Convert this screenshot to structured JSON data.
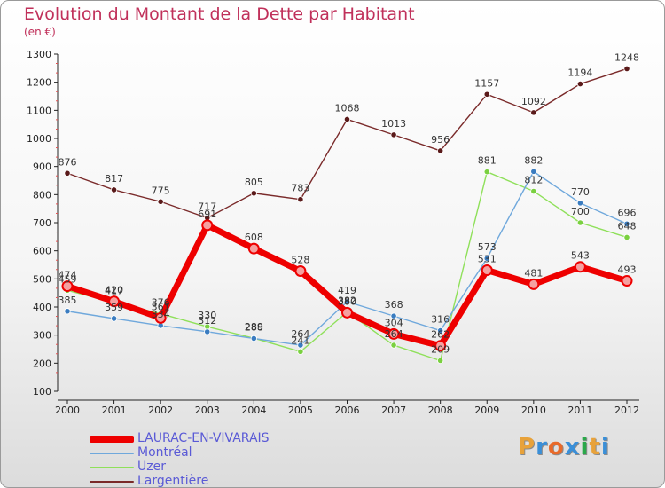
{
  "header": {
    "title": "Evolution du Montant de la Dette par Habitant",
    "subtitle": "(en €)"
  },
  "logo": {
    "text": "Proxiti",
    "colors": [
      "#e8a23a",
      "#3a8fd8",
      "#e86a2a",
      "#3a8fd8",
      "#2aa84a",
      "#e8a23a",
      "#3a8fd8"
    ]
  },
  "chart_data": {
    "type": "line",
    "title": "Evolution du Montant de la Dette par Habitant",
    "subtitle": "(en €)",
    "xlabel": "",
    "ylabel": "",
    "categories": [
      "2000",
      "2001",
      "2002",
      "2003",
      "2004",
      "2005",
      "2006",
      "2007",
      "2008",
      "2009",
      "2010",
      "2011",
      "2012"
    ],
    "ylim": [
      100,
      1300
    ],
    "yticks": [
      100,
      200,
      300,
      400,
      500,
      600,
      700,
      800,
      900,
      1000,
      1100,
      1200,
      1300
    ],
    "grid": false,
    "legend_position": "bottom-left",
    "series": [
      {
        "name": "Largentière",
        "color": "#7a2a2a",
        "marker": "#5a1a1a",
        "width": 1.4,
        "values": [
          876,
          817,
          775,
          717,
          805,
          783,
          1068,
          1013,
          956,
          1157,
          1092,
          1194,
          1248
        ]
      },
      {
        "name": "Uzer",
        "color": "#8fe05a",
        "marker": "#7ad040",
        "width": 1.4,
        "values": [
          459,
          417,
          376,
          330,
          289,
          241,
          382,
          264,
          209,
          881,
          812,
          700,
          648
        ]
      },
      {
        "name": "Montréal",
        "color": "#6fa8dc",
        "marker": "#3a7cc0",
        "width": 1.4,
        "values": [
          385,
          359,
          334,
          312,
          288,
          264,
          419,
          368,
          316,
          573,
          882,
          770,
          696
        ]
      },
      {
        "name": "LAURAC-EN-VIVARAIS",
        "color": "#ee0000",
        "marker": "#ee0000",
        "width": 7,
        "values": [
          474,
          420,
          361,
          691,
          608,
          528,
          380,
          304,
          262,
          531,
          481,
          543,
          493
        ]
      }
    ]
  }
}
